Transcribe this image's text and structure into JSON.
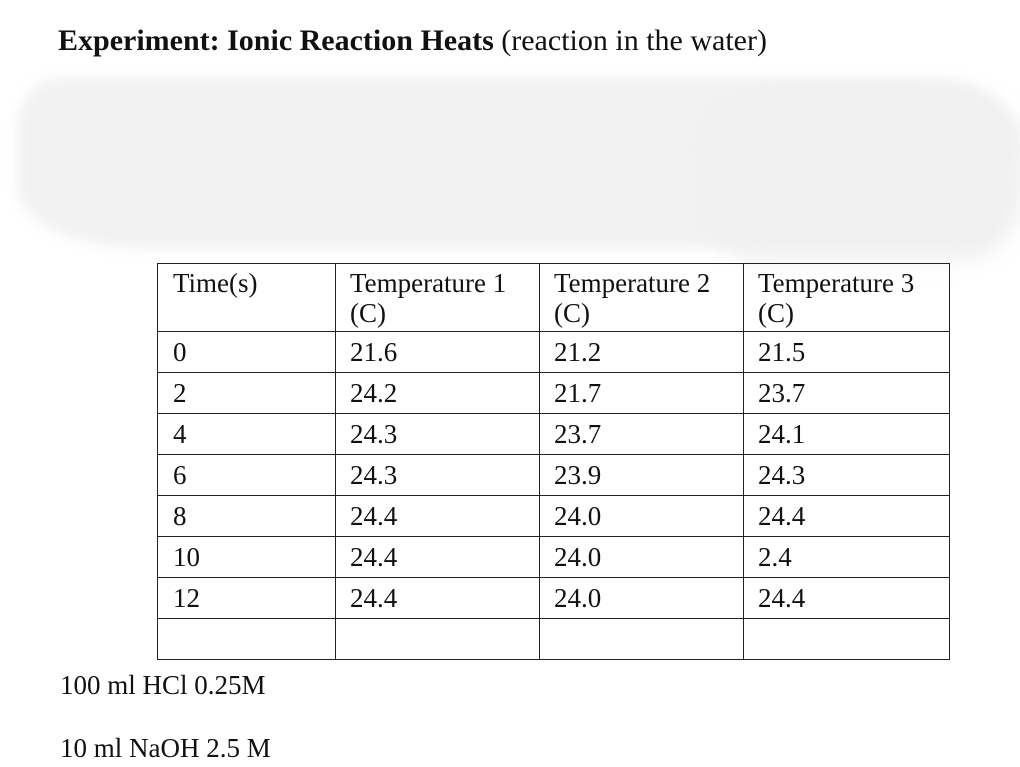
{
  "title": {
    "bold": "Experiment: Ionic Reaction Heats",
    "normal": "(reaction in the water)"
  },
  "table": {
    "headers": {
      "time": "Time(s)",
      "t1": "Temperature 1 (C)",
      "t2": "Temperature 2 (C)",
      "t3": "Temperature 3 (C)"
    },
    "rows": [
      [
        "0",
        "21.6",
        "21.2",
        "21.5"
      ],
      [
        "2",
        "24.2",
        "21.7",
        "23.7"
      ],
      [
        "4",
        "24.3",
        "23.7",
        "24.1"
      ],
      [
        "6",
        "24.3",
        "23.9",
        "24.3"
      ],
      [
        "8",
        "24.4",
        "24.0",
        "24.4"
      ],
      [
        "10",
        "24.4",
        "24.0",
        "2.4"
      ],
      [
        "12",
        "24.4",
        "24.0",
        "24.4"
      ],
      [
        "",
        "",
        "",
        ""
      ]
    ]
  },
  "notes": {
    "hcl": "100 ml HCl 0.25M",
    "naoh": "10 ml NaOH 2.5 M"
  }
}
